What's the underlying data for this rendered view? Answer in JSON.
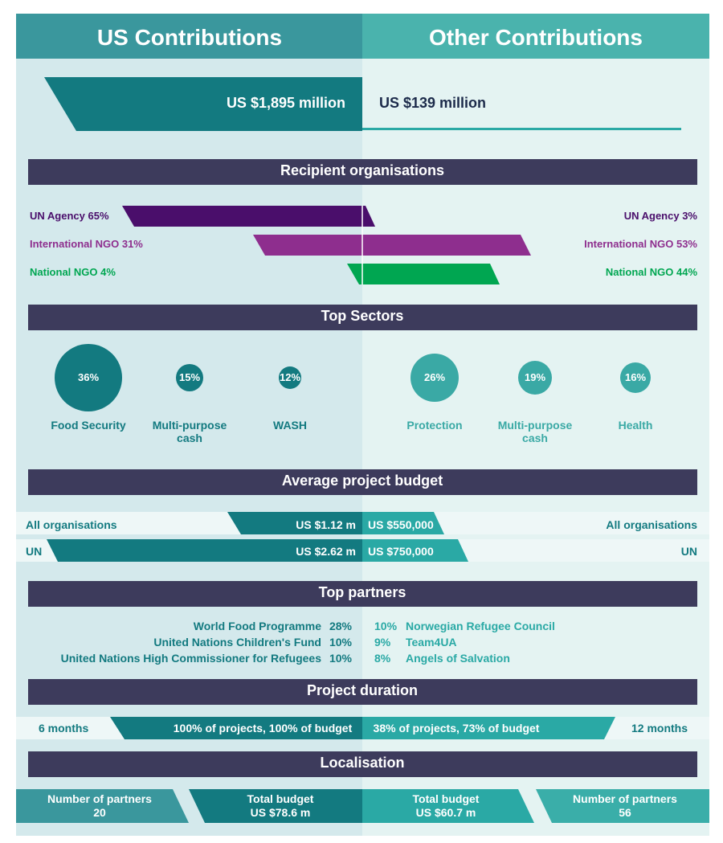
{
  "header": {
    "left_title": "US Contributions",
    "right_title": "Other Contributions"
  },
  "totals": {
    "us": "US $1,895 million",
    "other": "US $139 million"
  },
  "recipients": {
    "title": "Recipient organisations",
    "us": [
      "UN Agency 65%",
      "International NGO 31%",
      "National NGO 4%"
    ],
    "other": [
      "UN Agency 3%",
      "International NGO 53%",
      "National NGO 44%"
    ]
  },
  "sectors": {
    "title": "Top Sectors",
    "us": [
      {
        "value": "36%",
        "label": "Food Security"
      },
      {
        "value": "15%",
        "label": "Multi-purpose cash"
      },
      {
        "value": "12%",
        "label": "WASH"
      }
    ],
    "other": [
      {
        "value": "26%",
        "label": "Protection"
      },
      {
        "value": "19%",
        "label": "Multi-purpose cash"
      },
      {
        "value": "16%",
        "label": "Health"
      }
    ]
  },
  "budget": {
    "title": "Average project budget",
    "rows": [
      {
        "left_label": "All organisations",
        "us": "US $1.12 m",
        "other": "US $550,000",
        "right_label": "All organisations"
      },
      {
        "left_label": "UN",
        "us": "US $2.62 m",
        "other": "US $750,000",
        "right_label": "UN"
      }
    ]
  },
  "partners": {
    "title": "Top partners",
    "us": [
      {
        "name": "World Food Programme",
        "share": "28%"
      },
      {
        "name": "United Nations Children's Fund",
        "share": "10%"
      },
      {
        "name": "United Nations High Commissioner for Refugees",
        "share": "10%"
      }
    ],
    "other": [
      {
        "name": "Norwegian Refugee Council",
        "share": "10%"
      },
      {
        "name": "Team4UA",
        "share": "9%"
      },
      {
        "name": "Angels of Salvation",
        "share": "8%"
      }
    ]
  },
  "duration": {
    "title": "Project duration",
    "us_label": "6 months",
    "us": "100% of projects, 100% of budget",
    "other": "38% of projects, 73% of budget",
    "other_label": "12 months"
  },
  "localisation": {
    "title": "Localisation",
    "items": [
      {
        "label": "Number of partners",
        "value": "20"
      },
      {
        "label": "Total budget",
        "value": "US $78.6 m"
      },
      {
        "label": "Total budget",
        "value": "US $60.7 m"
      },
      {
        "label": "Number of partners",
        "value": "56"
      }
    ]
  }
}
